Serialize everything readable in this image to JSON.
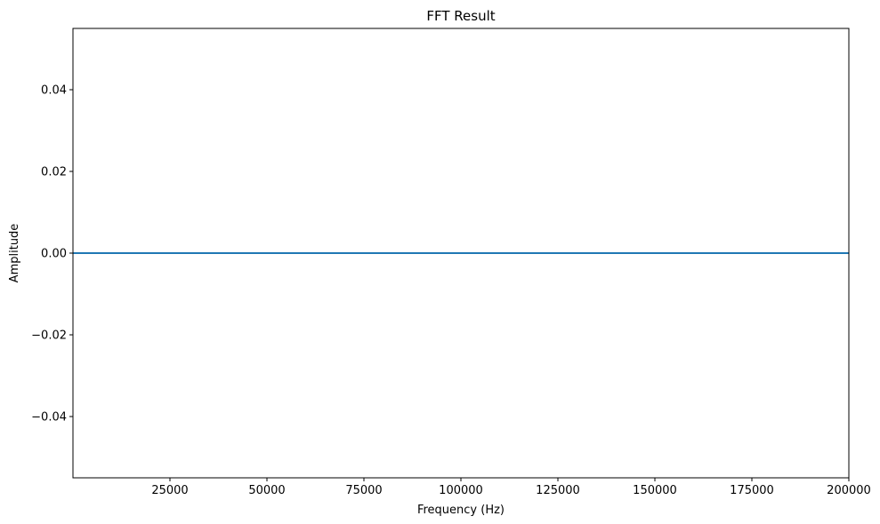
{
  "chart_data": {
    "type": "line",
    "title": "FFT Result",
    "xlabel": "Frequency (Hz)",
    "ylabel": "Amplitude",
    "xlim": [
      0,
      200000
    ],
    "ylim": [
      -0.055,
      0.055
    ],
    "xticks": [
      25000,
      50000,
      75000,
      100000,
      125000,
      150000,
      175000,
      200000
    ],
    "xtick_labels": [
      "25000",
      "50000",
      "75000",
      "100000",
      "125000",
      "150000",
      "175000",
      "200000"
    ],
    "yticks": [
      0.04,
      0.02,
      0.0,
      -0.02,
      -0.04
    ],
    "ytick_labels": [
      "0.04",
      "0.02",
      "0.00",
      "−0.02",
      "−0.04"
    ],
    "grid": false,
    "series": [
      {
        "x": [
          0,
          200000
        ],
        "y": [
          0,
          0
        ],
        "color": "#1f77b4"
      }
    ]
  }
}
